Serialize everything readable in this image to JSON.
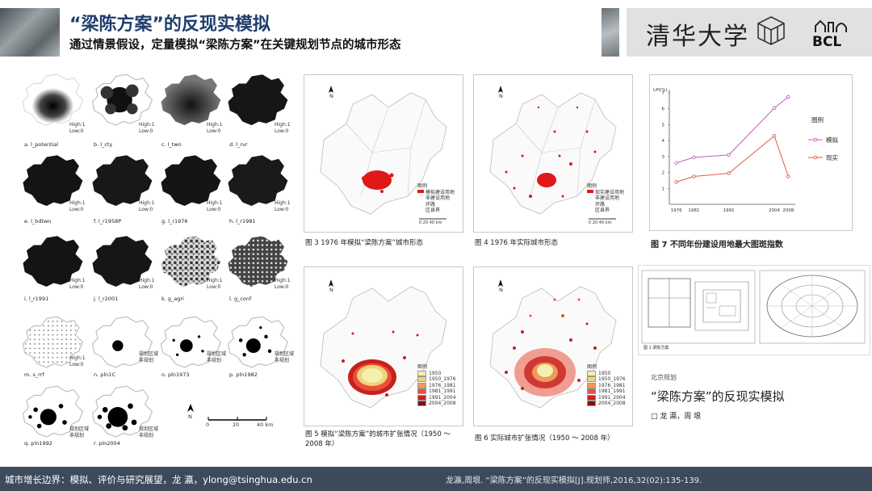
{
  "header": {
    "title": "“梁陈方案”的反现实模拟",
    "subtitle": "通过情景假设，定量模拟“梁陈方案”在关键规划节点的城市形态",
    "university_logo": "清华大学",
    "lab_logo": "BCL"
  },
  "maps": [
    {
      "label": "a.  l_potential",
      "legend": [
        "High:1",
        "Low:0"
      ]
    },
    {
      "label": "b.  l_cty",
      "legend": [
        "High:1",
        "Low:0"
      ]
    },
    {
      "label": "c.  l_twn",
      "legend": [
        "High:1",
        "Low:0"
      ]
    },
    {
      "label": "d.  l_rvr",
      "legend": [
        "High:1",
        "Low:0"
      ]
    },
    {
      "label": "e.  l_bdtwn",
      "legend": [
        "High:1",
        "Low:0"
      ]
    },
    {
      "label": "f.  l_r1958P",
      "legend": [
        "High:1",
        "Low:0"
      ]
    },
    {
      "label": "g.  l_r1976",
      "legend": [
        "High:1",
        "Low:0"
      ]
    },
    {
      "label": "h.  l_r1981",
      "legend": [
        "High:1",
        "Low:0"
      ]
    },
    {
      "label": "i.  l_r1991",
      "legend": [
        "High:1",
        "Low:0"
      ]
    },
    {
      "label": "j.  l_r2001",
      "legend": [
        "High:1",
        "Low:0"
      ]
    },
    {
      "label": "k.  g_agri",
      "legend": [
        "High:1",
        "Low:0"
      ]
    },
    {
      "label": "l.  g_conf",
      "legend": [
        "High:1",
        "Low:0"
      ]
    },
    {
      "label": "m.  s_rrf",
      "legend": [
        "High:1",
        "Low:0"
      ]
    },
    {
      "label": "n.  pln1C",
      "legend": [
        "规划区域",
        "非规划"
      ]
    },
    {
      "label": "o.  pln1973",
      "legend": [
        "规划区域",
        "非规划"
      ]
    },
    {
      "label": "p.  pln1982",
      "legend": [
        "规划区域",
        "非规划"
      ]
    },
    {
      "label": "q.  pln1992",
      "legend": [
        "规划区域",
        "非规划"
      ]
    },
    {
      "label": "r.  pln2004",
      "legend": [
        "规划区域",
        "非规划"
      ]
    }
  ],
  "scale_bar": {
    "north": "N",
    "ticks": [
      "0",
      "20",
      "40 km"
    ]
  },
  "fig3": {
    "caption": "图 3  1976 年模拟“梁陈方案”城市形态",
    "north": "N",
    "legend_title": "图例",
    "legend": [
      "模拟建设用地",
      "非建设用地",
      "环路",
      "区县界"
    ],
    "scale": "0   20   40 km"
  },
  "fig4": {
    "caption": "图 4  1976 年实际城市形态",
    "north": "N",
    "legend_title": "图例",
    "legend": [
      "现实建设用地",
      "非建设用地",
      "环路",
      "区县界"
    ],
    "scale": "0   20   40 km"
  },
  "fig5": {
    "caption": "图 5  模拟“梁陈方案”的城市扩张情况（1950 ～ 2008 年）",
    "north": "N",
    "legend_title": "图例",
    "legend": [
      "1950",
      "1950_1976",
      "1976_1981",
      "1981_1991",
      "1991_2004",
      "2004_2008"
    ],
    "legend_colors": [
      "#f3f0b0",
      "#f2d27a",
      "#ee9a5a",
      "#e8503c",
      "#c8201c",
      "#8c0d10"
    ]
  },
  "fig6": {
    "caption": "图 6  实际城市扩张情况（1950 ～ 2008 年）",
    "north": "N",
    "legend_title": "图例",
    "legend": [
      "1950",
      "1950_1976",
      "1976_1981",
      "1981_1991",
      "1991_2004",
      "2004_2008"
    ],
    "legend_colors": [
      "#f3f0b0",
      "#f2d27a",
      "#ee9a5a",
      "#e8503c",
      "#c8201c",
      "#8c0d10"
    ]
  },
  "fig7": {
    "caption": "图 7  不同年份建设用地最大图斑指数",
    "legend_title": "图例",
    "chart_data": {
      "type": "line",
      "x": [
        1976,
        1981,
        1991,
        2004,
        2008
      ],
      "xticks": [
        "1976",
        "1981",
        "1991",
        "2004",
        "2008"
      ],
      "ylabel": "LPI(%)",
      "ylim": [
        0,
        7
      ],
      "yticks": [
        "1",
        "2",
        "3",
        "4",
        "5",
        "6",
        "7"
      ],
      "series": [
        {
          "name": "模拟",
          "color": "#c060c0",
          "values": [
            2.6,
            2.95,
            3.1,
            6.05,
            6.75
          ]
        },
        {
          "name": "现实",
          "color": "#e05a4a",
          "values": [
            1.4,
            1.75,
            1.95,
            4.3,
            1.75
          ]
        }
      ]
    }
  },
  "book": {
    "publisher_mark": "北京规划",
    "title": "“梁陈方案”的反现实模拟",
    "authors": "□  龙  瀛，周  垠",
    "plan_caption": "图 1  梁陈方案"
  },
  "footer": {
    "left": "城市增长边界：模拟、评价与研究展望，龙   瀛，ylong@tsinghua.edu.cn",
    "right": "龙瀛,周垠. “梁陈方案”的反现实模拟[J].规划师,2016,32(02):135-139."
  }
}
